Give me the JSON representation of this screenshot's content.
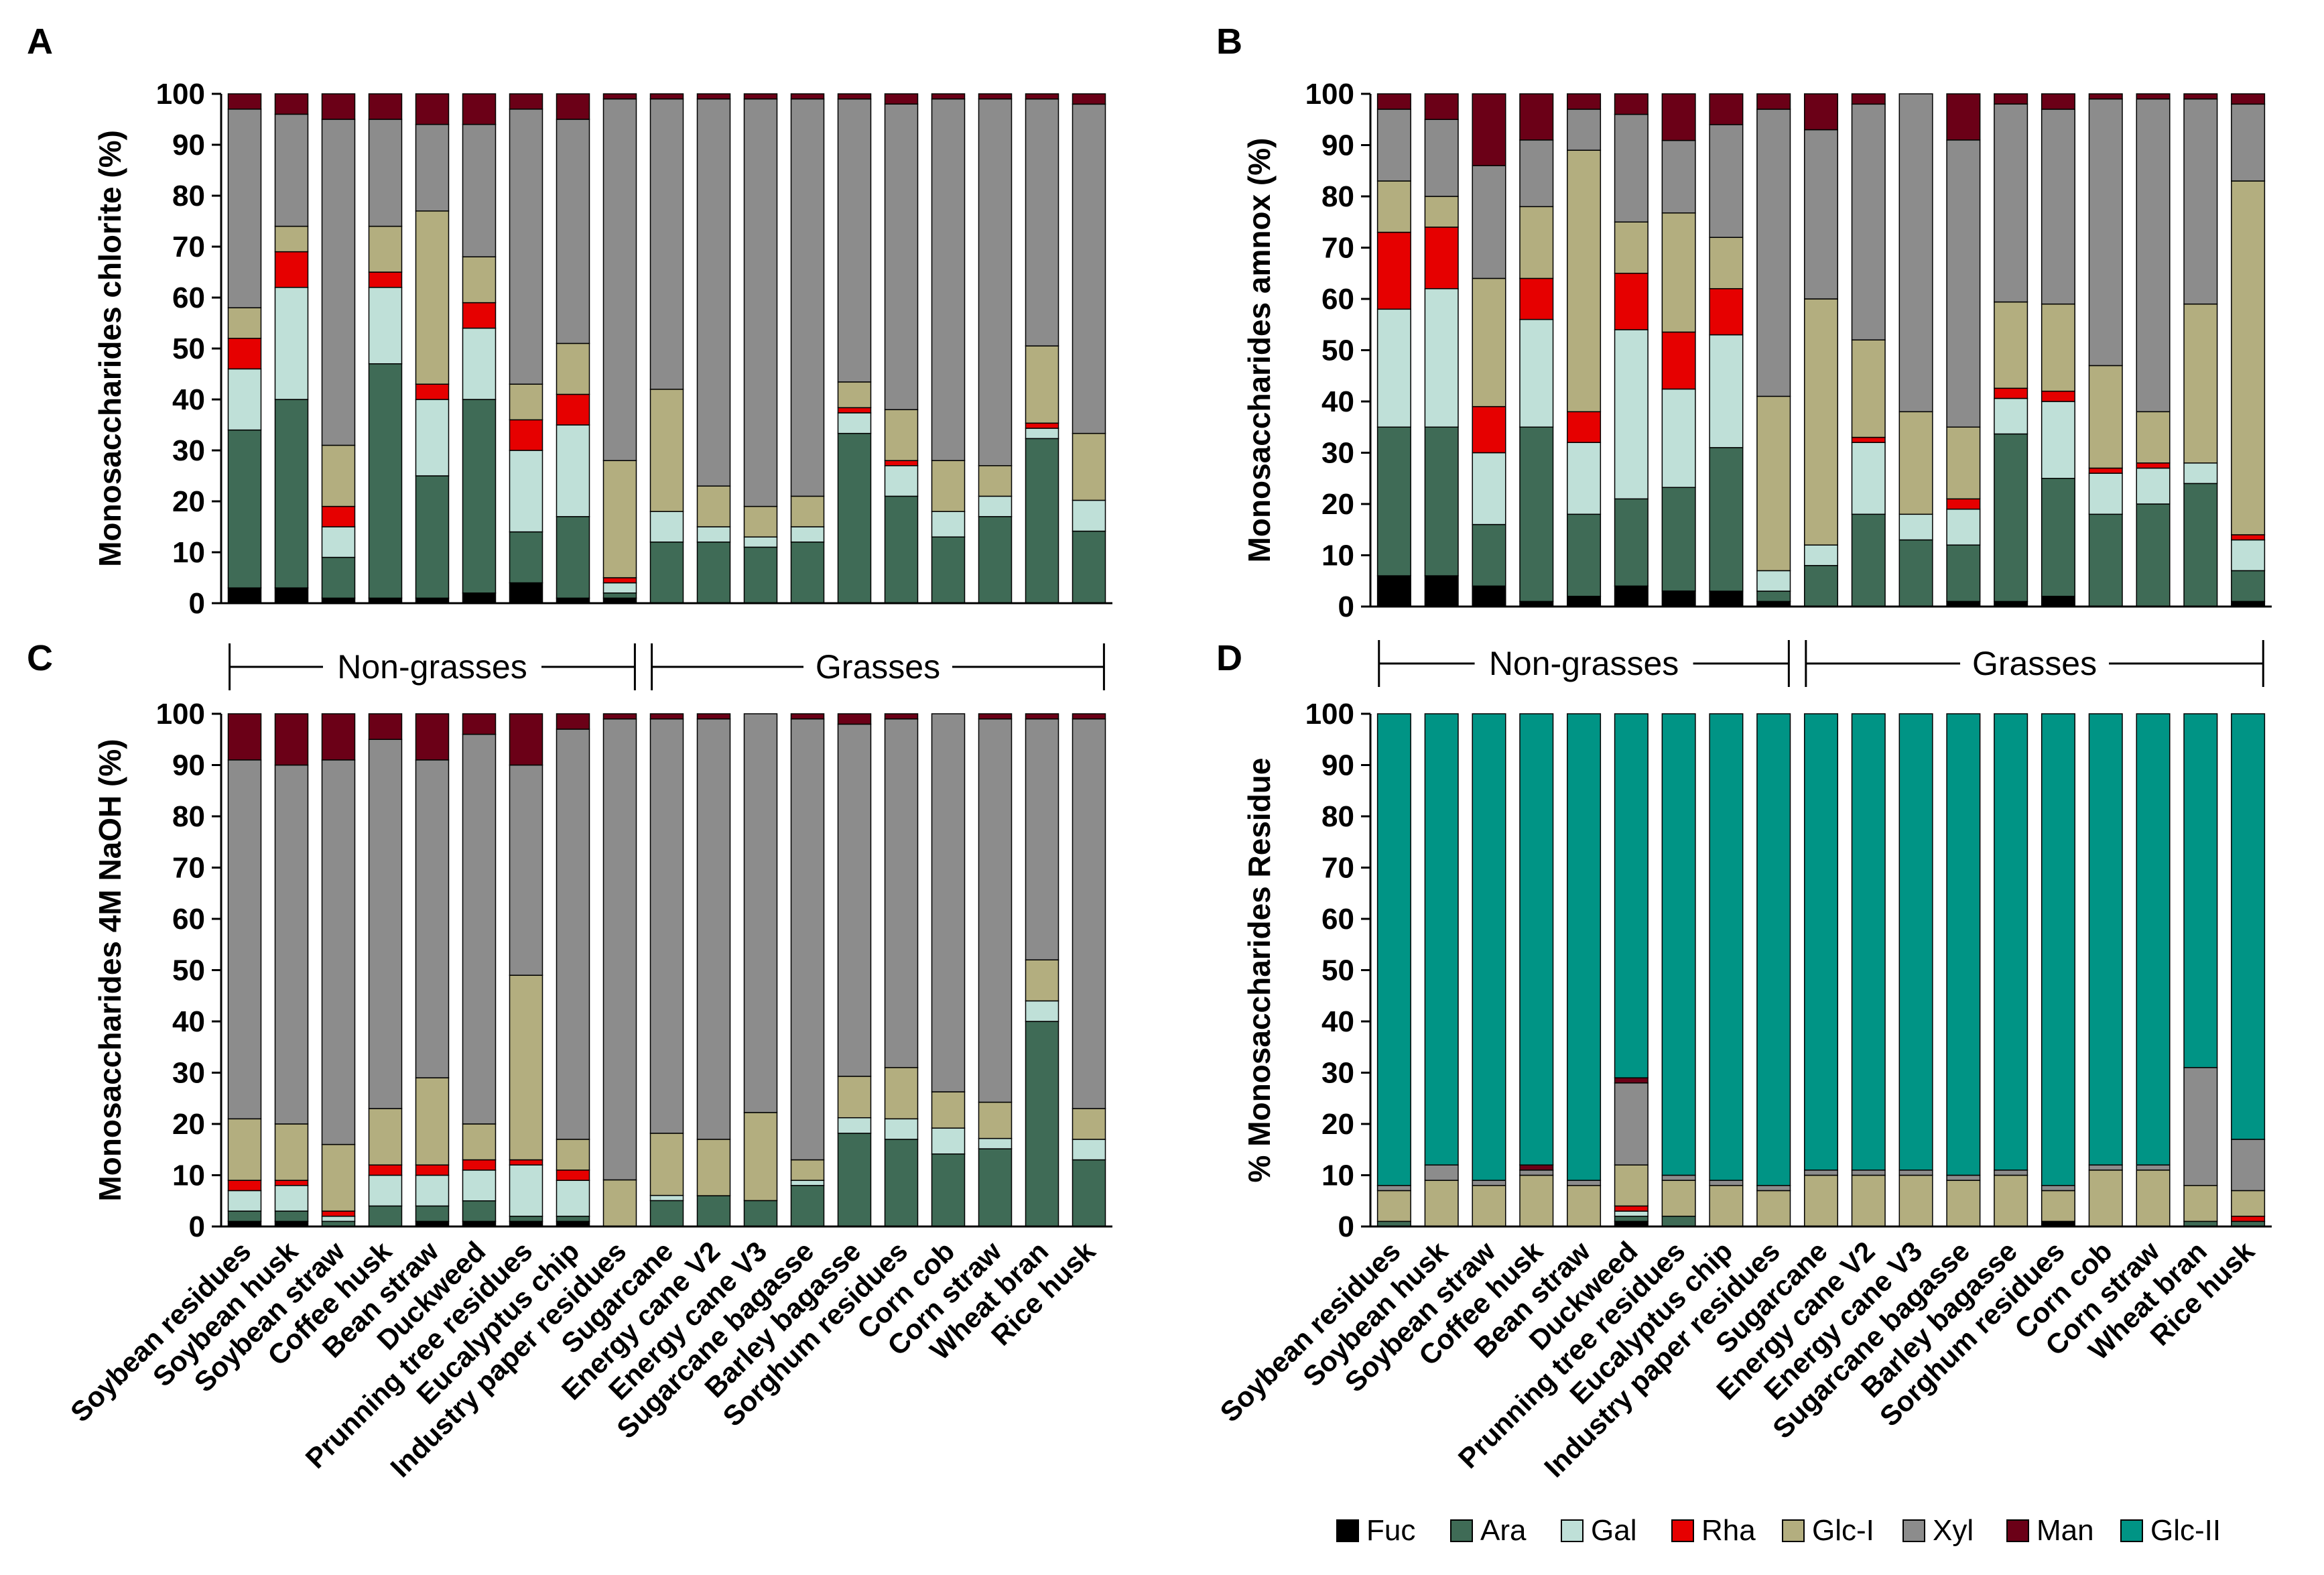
{
  "chart_data": {
    "type": "stacked-bar",
    "categories": [
      "Soybean residues",
      "Soybean husk",
      "Soybean straw",
      "Coffee husk",
      "Bean straw",
      "Duckweed",
      "Prunning tree residues",
      "Eucalyptus chip",
      "Industry paper residues",
      "Sugarcane",
      "Energy cane V2",
      "Energy cane V3",
      "Sugarcane bagasse",
      "Barley bagasse",
      "Sorghum residues",
      "Corn cob",
      "Corn straw",
      "Wheat bran",
      "Rice husk"
    ],
    "series_names": [
      "Fuc",
      "Ara",
      "Gal",
      "Rha",
      "Glc-I",
      "Xyl",
      "Man",
      "Glc-II"
    ],
    "colors": {
      "Fuc": "#000000",
      "Ara": "#3f6b56",
      "Gal": "#bfe0d8",
      "Rha": "#e60000",
      "Glc-I": "#b3ae7f",
      "Xyl": "#8c8c8c",
      "Man": "#6b0017",
      "Glc-II": "#009485"
    },
    "groups": [
      {
        "label": "Non-grasses",
        "from": 0,
        "to": 8
      },
      {
        "label": "Grasses",
        "from": 9,
        "to": 18
      }
    ],
    "ylim": [
      0,
      100
    ],
    "yticks": [
      "0",
      "10",
      "20",
      "30",
      "40",
      "50",
      "60",
      "70",
      "80",
      "90",
      "100"
    ],
    "legend": {
      "position": "bottom-right",
      "items": [
        "Fuc",
        "Ara",
        "Gal",
        "Rha",
        "Glc-I",
        "Xyl",
        "Man",
        "Glc-II"
      ]
    },
    "panels": [
      {
        "letter": "A",
        "ylabel": "Monosaccharides chlorite (%)",
        "show_categories": false,
        "series": [
          {
            "name": "Fuc",
            "values": [
              3,
              3,
              1,
              1,
              1,
              2,
              4,
              1,
              1,
              0,
              0,
              0,
              0,
              0,
              0,
              0,
              0,
              0,
              0
            ]
          },
          {
            "name": "Ara",
            "values": [
              31,
              37,
              8,
              46,
              24,
              38,
              10,
              16,
              1,
              12,
              12,
              11,
              12,
              33,
              21,
              13,
              17,
              32,
              14
            ]
          },
          {
            "name": "Gal",
            "values": [
              12,
              22,
              6,
              15,
              15,
              14,
              16,
              18,
              2,
              6,
              3,
              2,
              3,
              4,
              6,
              5,
              4,
              2,
              6
            ]
          },
          {
            "name": "Rha",
            "values": [
              6,
              7,
              4,
              3,
              3,
              5,
              6,
              6,
              1,
              0,
              0,
              0,
              0,
              1,
              1,
              0,
              0,
              1,
              0
            ]
          },
          {
            "name": "Glc-I",
            "values": [
              6,
              5,
              12,
              9,
              34,
              9,
              7,
              10,
              23,
              24,
              8,
              6,
              6,
              5,
              10,
              10,
              6,
              15,
              13
            ]
          },
          {
            "name": "Xyl",
            "values": [
              39,
              22,
              64,
              21,
              17,
              26,
              54,
              44,
              71,
              57,
              76,
              80,
              78,
              55,
              60,
              71,
              72,
              48,
              64
            ]
          },
          {
            "name": "Man",
            "values": [
              3,
              4,
              5,
              5,
              6,
              6,
              3,
              5,
              1,
              1,
              1,
              1,
              1,
              1,
              2,
              1,
              1,
              1,
              2
            ]
          }
        ]
      },
      {
        "letter": "B",
        "ylabel": "Monosaccharides amnox (%)",
        "show_categories": false,
        "series": [
          {
            "name": "Fuc",
            "values": [
              6,
              6,
              4,
              1,
              2,
              4,
              3,
              3,
              1,
              0,
              0,
              0,
              1,
              1,
              2,
              0,
              0,
              0,
              1
            ]
          },
          {
            "name": "Ara",
            "values": [
              29,
              29,
              12,
              34,
              16,
              17,
              20,
              28,
              2,
              8,
              18,
              13,
              11,
              33,
              23,
              18,
              20,
              24,
              6
            ]
          },
          {
            "name": "Gal",
            "values": [
              23,
              27,
              14,
              21,
              14,
              33,
              19,
              22,
              4,
              4,
              14,
              5,
              7,
              7,
              15,
              8,
              7,
              4,
              6
            ]
          },
          {
            "name": "Rha",
            "values": [
              15,
              12,
              9,
              8,
              6,
              11,
              11,
              9,
              0,
              0,
              1,
              0,
              2,
              2,
              2,
              1,
              1,
              0,
              1
            ]
          },
          {
            "name": "Glc-I",
            "values": [
              10,
              6,
              25,
              14,
              51,
              10,
              23,
              10,
              34,
              48,
              19,
              20,
              14,
              17,
              17,
              20,
              10,
              31,
              69
            ]
          },
          {
            "name": "Xyl",
            "values": [
              14,
              15,
              22,
              13,
              8,
              21,
              14,
              22,
              56,
              33,
              46,
              62,
              56,
              39,
              38,
              52,
              61,
              40,
              15
            ]
          },
          {
            "name": "Man",
            "values": [
              3,
              5,
              14,
              9,
              3,
              4,
              9,
              6,
              3,
              7,
              2,
              0,
              9,
              2,
              3,
              1,
              1,
              1,
              2
            ]
          }
        ]
      },
      {
        "letter": "C",
        "ylabel": "Monosaccharides 4M NaOH (%)",
        "show_categories": true,
        "series": [
          {
            "name": "Fuc",
            "values": [
              1,
              1,
              0,
              0,
              1,
              1,
              1,
              1,
              0,
              0,
              0,
              0,
              0,
              0,
              0,
              0,
              0,
              0,
              0
            ]
          },
          {
            "name": "Ara",
            "values": [
              2,
              2,
              1,
              4,
              3,
              4,
              1,
              1,
              0,
              5,
              6,
              5,
              8,
              18,
              17,
              14,
              15,
              40,
              13
            ]
          },
          {
            "name": "Gal",
            "values": [
              4,
              5,
              1,
              6,
              6,
              6,
              10,
              7,
              0,
              1,
              0,
              0,
              1,
              3,
              4,
              5,
              2,
              4,
              4
            ]
          },
          {
            "name": "Rha",
            "values": [
              2,
              1,
              1,
              2,
              2,
              2,
              1,
              2,
              0,
              0,
              0,
              0,
              0,
              0,
              0,
              0,
              0,
              0,
              0
            ]
          },
          {
            "name": "Glc-I",
            "values": [
              12,
              11,
              13,
              11,
              17,
              7,
              36,
              6,
              9,
              12,
              11,
              17,
              4,
              8,
              10,
              7,
              7,
              8,
              6
            ]
          },
          {
            "name": "Xyl",
            "values": [
              70,
              70,
              75,
              72,
              62,
              76,
              41,
              80,
              89,
              80,
              82,
              77,
              86,
              68,
              68,
              73,
              74,
              47,
              76
            ]
          },
          {
            "name": "Man",
            "values": [
              9,
              10,
              9,
              5,
              9,
              4,
              10,
              3,
              1,
              1,
              1,
              0,
              1,
              2,
              1,
              0,
              1,
              1,
              1
            ]
          }
        ]
      },
      {
        "letter": "D",
        "ylabel": "% Monosaccharides Residue",
        "show_categories": true,
        "series": [
          {
            "name": "Fuc",
            "values": [
              0,
              0,
              0,
              0,
              0,
              1,
              0,
              0,
              0,
              0,
              0,
              0,
              0,
              0,
              1,
              0,
              0,
              0,
              0
            ]
          },
          {
            "name": "Ara",
            "values": [
              1,
              0,
              0,
              0,
              0,
              1,
              2,
              0,
              0,
              0,
              0,
              0,
              0,
              0,
              0,
              0,
              0,
              1,
              1
            ]
          },
          {
            "name": "Gal",
            "values": [
              0,
              0,
              0,
              0,
              0,
              1,
              0,
              0,
              0,
              0,
              0,
              0,
              0,
              0,
              0,
              0,
              0,
              0,
              0
            ]
          },
          {
            "name": "Rha",
            "values": [
              0,
              0,
              0,
              0,
              0,
              1,
              0,
              0,
              0,
              0,
              0,
              0,
              0,
              0,
              0,
              0,
              0,
              0,
              1
            ]
          },
          {
            "name": "Glc-I",
            "values": [
              6,
              9,
              8,
              10,
              8,
              8,
              7,
              8,
              7,
              10,
              10,
              10,
              9,
              10,
              6,
              11,
              11,
              7,
              5
            ]
          },
          {
            "name": "Xyl",
            "values": [
              1,
              3,
              1,
              1,
              1,
              16,
              1,
              1,
              1,
              1,
              1,
              1,
              1,
              1,
              1,
              1,
              1,
              23,
              10
            ]
          },
          {
            "name": "Man",
            "values": [
              0,
              0,
              0,
              1,
              0,
              1,
              0,
              0,
              0,
              0,
              0,
              0,
              0,
              0,
              0,
              0,
              0,
              0,
              0
            ]
          },
          {
            "name": "Glc-II",
            "values": [
              92,
              88,
              91,
              88,
              91,
              71,
              90,
              91,
              92,
              89,
              89,
              89,
              90,
              89,
              92,
              88,
              88,
              69,
              83
            ]
          }
        ]
      }
    ]
  }
}
